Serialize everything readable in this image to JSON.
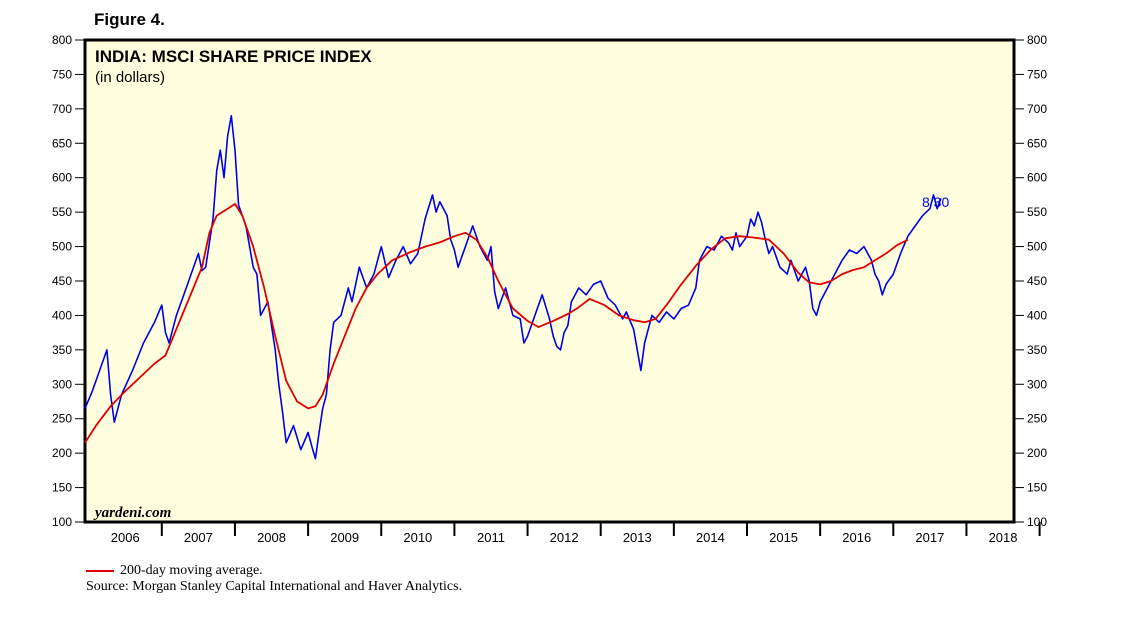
{
  "figure_label": "Figure 4.",
  "chart_data": {
    "type": "line",
    "title": "INDIA: MSCI SHARE PRICE INDEX",
    "subtitle": "(in dollars)",
    "watermark": "yardeni.com",
    "annotation": "8/30",
    "x_tick_labels": [
      "2006",
      "2007",
      "2008",
      "2009",
      "2010",
      "2011",
      "2012",
      "2013",
      "2014",
      "2015",
      "2016",
      "2017",
      "2018"
    ],
    "xlim": [
      2005.95,
      2018.65
    ],
    "ylim": [
      100,
      800
    ],
    "y_ticks": [
      100,
      150,
      200,
      250,
      300,
      350,
      400,
      450,
      500,
      550,
      600,
      650,
      700,
      750,
      800
    ],
    "background_color": "#ffffe0",
    "series": [
      {
        "color": "#0000e6",
        "points": [
          [
            2005.95,
            265
          ],
          [
            2006.05,
            290
          ],
          [
            2006.15,
            320
          ],
          [
            2006.25,
            350
          ],
          [
            2006.3,
            285
          ],
          [
            2006.35,
            245
          ],
          [
            2006.45,
            285
          ],
          [
            2006.6,
            320
          ],
          [
            2006.75,
            360
          ],
          [
            2006.9,
            390
          ],
          [
            2007.0,
            415
          ],
          [
            2007.05,
            375
          ],
          [
            2007.1,
            360
          ],
          [
            2007.2,
            400
          ],
          [
            2007.3,
            430
          ],
          [
            2007.4,
            460
          ],
          [
            2007.5,
            490
          ],
          [
            2007.55,
            465
          ],
          [
            2007.6,
            470
          ],
          [
            2007.7,
            540
          ],
          [
            2007.75,
            610
          ],
          [
            2007.8,
            640
          ],
          [
            2007.85,
            600
          ],
          [
            2007.9,
            660
          ],
          [
            2007.95,
            690
          ],
          [
            2008.0,
            640
          ],
          [
            2008.05,
            560
          ],
          [
            2008.1,
            545
          ],
          [
            2008.15,
            530
          ],
          [
            2008.2,
            500
          ],
          [
            2008.25,
            470
          ],
          [
            2008.3,
            460
          ],
          [
            2008.35,
            400
          ],
          [
            2008.45,
            420
          ],
          [
            2008.55,
            350
          ],
          [
            2008.6,
            300
          ],
          [
            2008.65,
            260
          ],
          [
            2008.7,
            215
          ],
          [
            2008.8,
            240
          ],
          [
            2008.9,
            205
          ],
          [
            2009.0,
            230
          ],
          [
            2009.05,
            210
          ],
          [
            2009.1,
            192
          ],
          [
            2009.15,
            230
          ],
          [
            2009.2,
            265
          ],
          [
            2009.25,
            285
          ],
          [
            2009.3,
            350
          ],
          [
            2009.35,
            390
          ],
          [
            2009.45,
            400
          ],
          [
            2009.55,
            440
          ],
          [
            2009.6,
            420
          ],
          [
            2009.7,
            470
          ],
          [
            2009.8,
            440
          ],
          [
            2009.9,
            460
          ],
          [
            2010.0,
            500
          ],
          [
            2010.1,
            455
          ],
          [
            2010.2,
            480
          ],
          [
            2010.3,
            500
          ],
          [
            2010.4,
            475
          ],
          [
            2010.5,
            490
          ],
          [
            2010.6,
            540
          ],
          [
            2010.7,
            575
          ],
          [
            2010.75,
            550
          ],
          [
            2010.8,
            565
          ],
          [
            2010.9,
            545
          ],
          [
            2010.95,
            510
          ],
          [
            2011.0,
            495
          ],
          [
            2011.05,
            470
          ],
          [
            2011.15,
            500
          ],
          [
            2011.25,
            530
          ],
          [
            2011.35,
            500
          ],
          [
            2011.45,
            480
          ],
          [
            2011.5,
            500
          ],
          [
            2011.55,
            435
          ],
          [
            2011.6,
            410
          ],
          [
            2011.7,
            440
          ],
          [
            2011.8,
            400
          ],
          [
            2011.9,
            395
          ],
          [
            2011.95,
            360
          ],
          [
            2012.0,
            370
          ],
          [
            2012.1,
            400
          ],
          [
            2012.2,
            430
          ],
          [
            2012.3,
            395
          ],
          [
            2012.35,
            370
          ],
          [
            2012.4,
            355
          ],
          [
            2012.45,
            350
          ],
          [
            2012.5,
            375
          ],
          [
            2012.55,
            385
          ],
          [
            2012.6,
            420
          ],
          [
            2012.7,
            440
          ],
          [
            2012.8,
            430
          ],
          [
            2012.9,
            445
          ],
          [
            2013.0,
            450
          ],
          [
            2013.1,
            425
          ],
          [
            2013.2,
            415
          ],
          [
            2013.3,
            395
          ],
          [
            2013.35,
            405
          ],
          [
            2013.45,
            380
          ],
          [
            2013.55,
            320
          ],
          [
            2013.6,
            360
          ],
          [
            2013.7,
            400
          ],
          [
            2013.8,
            390
          ],
          [
            2013.9,
            405
          ],
          [
            2014.0,
            395
          ],
          [
            2014.1,
            410
          ],
          [
            2014.2,
            415
          ],
          [
            2014.3,
            440
          ],
          [
            2014.35,
            480
          ],
          [
            2014.45,
            500
          ],
          [
            2014.55,
            495
          ],
          [
            2014.65,
            515
          ],
          [
            2014.75,
            505
          ],
          [
            2014.8,
            495
          ],
          [
            2014.85,
            520
          ],
          [
            2014.9,
            500
          ],
          [
            2015.0,
            515
          ],
          [
            2015.05,
            540
          ],
          [
            2015.1,
            530
          ],
          [
            2015.15,
            550
          ],
          [
            2015.2,
            535
          ],
          [
            2015.25,
            510
          ],
          [
            2015.3,
            490
          ],
          [
            2015.35,
            500
          ],
          [
            2015.45,
            470
          ],
          [
            2015.55,
            460
          ],
          [
            2015.6,
            480
          ],
          [
            2015.7,
            450
          ],
          [
            2015.8,
            470
          ],
          [
            2015.85,
            450
          ],
          [
            2015.9,
            410
          ],
          [
            2015.95,
            400
          ],
          [
            2016.0,
            420
          ],
          [
            2016.1,
            440
          ],
          [
            2016.2,
            460
          ],
          [
            2016.3,
            480
          ],
          [
            2016.4,
            495
          ],
          [
            2016.5,
            490
          ],
          [
            2016.6,
            500
          ],
          [
            2016.7,
            480
          ],
          [
            2016.75,
            460
          ],
          [
            2016.8,
            450
          ],
          [
            2016.85,
            430
          ],
          [
            2016.9,
            445
          ],
          [
            2017.0,
            460
          ],
          [
            2017.1,
            490
          ],
          [
            2017.2,
            515
          ],
          [
            2017.3,
            530
          ],
          [
            2017.4,
            545
          ],
          [
            2017.5,
            555
          ],
          [
            2017.55,
            575
          ],
          [
            2017.6,
            555
          ],
          [
            2017.65,
            570
          ]
        ]
      },
      {
        "name": "200-day moving average.",
        "color": "#e00000",
        "points": [
          [
            2005.95,
            215
          ],
          [
            2006.1,
            240
          ],
          [
            2006.3,
            268
          ],
          [
            2006.5,
            290
          ],
          [
            2006.7,
            310
          ],
          [
            2006.9,
            330
          ],
          [
            2007.05,
            342
          ],
          [
            2007.55,
            470
          ],
          [
            2007.65,
            520
          ],
          [
            2007.75,
            545
          ],
          [
            2007.9,
            555
          ],
          [
            2008.0,
            562
          ],
          [
            2008.1,
            545
          ],
          [
            2008.25,
            500
          ],
          [
            2008.4,
            440
          ],
          [
            2008.55,
            370
          ],
          [
            2008.7,
            305
          ],
          [
            2008.85,
            275
          ],
          [
            2009.0,
            265
          ],
          [
            2009.1,
            268
          ],
          [
            2009.2,
            285
          ],
          [
            2009.35,
            330
          ],
          [
            2009.5,
            370
          ],
          [
            2009.65,
            410
          ],
          [
            2009.8,
            440
          ],
          [
            2009.95,
            460
          ],
          [
            2010.15,
            480
          ],
          [
            2010.4,
            492
          ],
          [
            2010.6,
            500
          ],
          [
            2010.8,
            506
          ],
          [
            2011.0,
            515
          ],
          [
            2011.15,
            520
          ],
          [
            2011.3,
            510
          ],
          [
            2011.45,
            485
          ],
          [
            2011.6,
            450
          ],
          [
            2011.8,
            410
          ],
          [
            2012.0,
            392
          ],
          [
            2012.15,
            383
          ],
          [
            2012.35,
            392
          ],
          [
            2012.55,
            402
          ],
          [
            2012.7,
            412
          ],
          [
            2012.85,
            424
          ],
          [
            2013.05,
            415
          ],
          [
            2013.25,
            400
          ],
          [
            2013.45,
            393
          ],
          [
            2013.6,
            390
          ],
          [
            2013.75,
            395
          ],
          [
            2013.9,
            415
          ],
          [
            2014.1,
            445
          ],
          [
            2014.3,
            472
          ],
          [
            2014.5,
            495
          ],
          [
            2014.7,
            512
          ],
          [
            2014.9,
            515
          ],
          [
            2015.1,
            513
          ],
          [
            2015.3,
            510
          ],
          [
            2015.5,
            490
          ],
          [
            2015.7,
            462
          ],
          [
            2015.85,
            448
          ],
          [
            2016.0,
            445
          ],
          [
            2016.15,
            450
          ],
          [
            2016.3,
            460
          ],
          [
            2016.45,
            466
          ],
          [
            2016.6,
            470
          ],
          [
            2016.75,
            480
          ],
          [
            2016.9,
            490
          ],
          [
            2017.05,
            502
          ],
          [
            2017.2,
            510
          ]
        ]
      }
    ]
  },
  "footnote": {
    "legend_label": "200-day moving average.",
    "source": "Source: Morgan Stanley Capital International and Haver Analytics."
  }
}
